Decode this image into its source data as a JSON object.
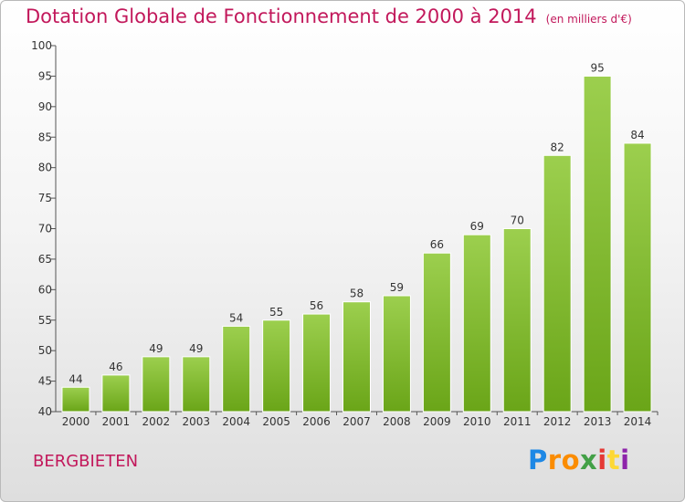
{
  "header": {
    "title": "Dotation Globale de Fonctionnement de 2000 à 2014",
    "unit": "(en milliers d'€)"
  },
  "footer": {
    "commune": "BERGBIETEN",
    "brand": {
      "letters": [
        "P",
        "r",
        "o",
        "x",
        "i",
        "t",
        "i"
      ],
      "colors": [
        "#1e88e5",
        "#fb8c00",
        "#fb8c00",
        "#43a047",
        "#e53935",
        "#fdd835",
        "#8e24aa"
      ]
    }
  },
  "colors": {
    "bar_top": "#9ccf4e",
    "bar_bottom": "#6aa518",
    "title": "#c2185b"
  },
  "chart_data": {
    "type": "bar",
    "categories": [
      "2000",
      "2001",
      "2002",
      "2003",
      "2004",
      "2005",
      "2006",
      "2007",
      "2008",
      "2009",
      "2010",
      "2011",
      "2012",
      "2013",
      "2014"
    ],
    "values": [
      44,
      46,
      49,
      49,
      54,
      55,
      56,
      58,
      59,
      66,
      69,
      70,
      82,
      95,
      84
    ],
    "ylim": [
      40,
      100
    ],
    "yticks": [
      40,
      45,
      50,
      55,
      60,
      65,
      70,
      75,
      80,
      85,
      90,
      95,
      100
    ],
    "grid": false
  }
}
